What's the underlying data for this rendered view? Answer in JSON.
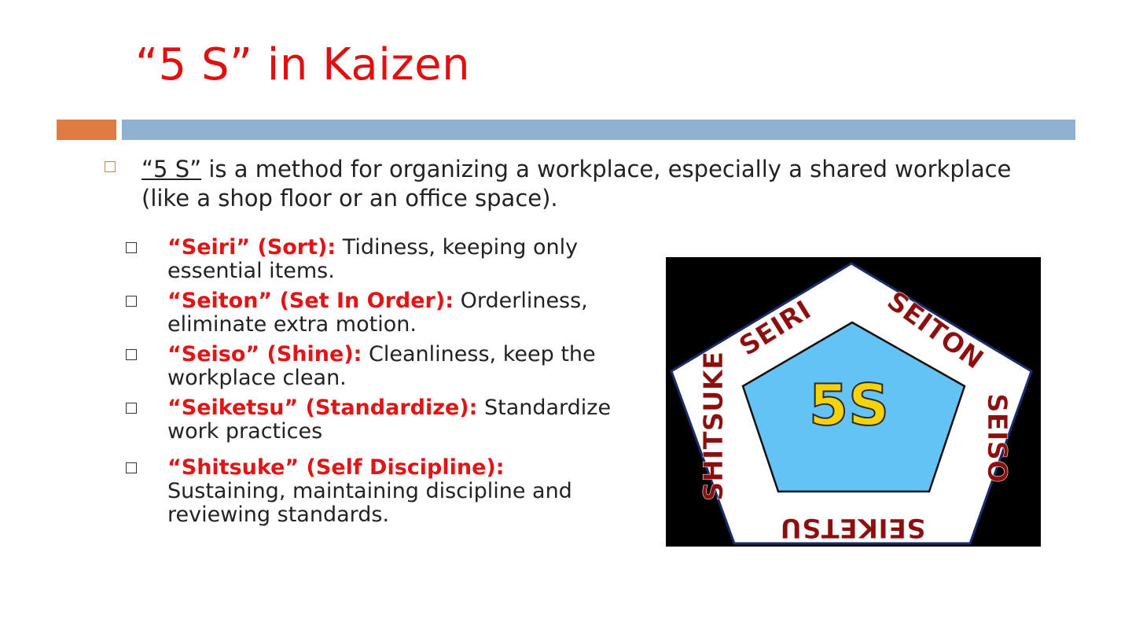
{
  "slide": {
    "title": "“5 S” in Kaizen",
    "intro": {
      "term": "“5 S”",
      "text": " is a method for organizing a workplace, especially a shared workplace (like a shop floor or an office space)."
    },
    "items": [
      {
        "term": "“Seiri” (Sort):",
        "desc": " Tidiness, keeping only essential items."
      },
      {
        "term": "“Seiton” (Set In Order):",
        "desc": " Orderliness, eliminate extra motion."
      },
      {
        "term": "“Seiso” (Shine):",
        "desc": " Cleanliness, keep the workplace clean."
      },
      {
        "term": "“Seiketsu” (Standardize):",
        "desc": " Standardize work practices"
      },
      {
        "term": "“Shitsuke” (Self Discipline):",
        "desc": " Sustaining, maintaining discipline and reviewing standards."
      }
    ]
  },
  "figure": {
    "center_label": "5S",
    "labels": {
      "seiri": "SEIRI",
      "seiton": "SEITON",
      "seiso": "SEISO",
      "seiketsu": "SEIKETSU",
      "shitsuke": "SHITSUKE"
    },
    "colors": {
      "background": "#000000",
      "outer_pentagon": "#ffffff",
      "inner_pentagon": "#63c3f5",
      "label_text": "#8b0f0f",
      "center_text": "#f5d20a"
    }
  },
  "colors": {
    "title": "#e01010",
    "accent_orange": "#e07b42",
    "accent_blue": "#8fb0d0",
    "term_red": "#e01515"
  }
}
